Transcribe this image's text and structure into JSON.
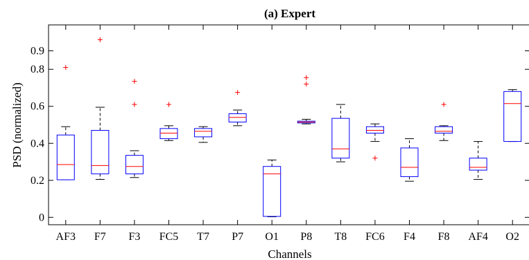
{
  "chart_data": {
    "type": "boxplot",
    "title": "(a) Expert",
    "xlabel": "Channels",
    "ylabel": "PSD (normalized)",
    "ylim": [
      -0.04,
      1.04
    ],
    "yticks": [
      0,
      0.2,
      0.4,
      0.6,
      0.8,
      0.9
    ],
    "ytick_labels": [
      "0",
      "0.2",
      "0.4",
      "0.6",
      "0.8",
      "0.9"
    ],
    "grid": false,
    "box_color": "#0000ff",
    "median_color": "#ff0000",
    "whisker_color": "#000000",
    "outlier_color": "#ff0000",
    "categories": [
      "AF3",
      "F7",
      "F3",
      "FC5",
      "T7",
      "P7",
      "O1",
      "P8",
      "T8",
      "FC6",
      "F4",
      "F8",
      "AF4",
      "O2"
    ],
    "boxes": [
      {
        "q1": 0.203,
        "median": 0.285,
        "q3": 0.445,
        "whisker_low": 0.203,
        "whisker_high": 0.49,
        "outliers": [
          0.81
        ]
      },
      {
        "q1": 0.235,
        "median": 0.28,
        "q3": 0.47,
        "whisker_low": 0.205,
        "whisker_high": 0.595,
        "outliers": [
          0.96
        ]
      },
      {
        "q1": 0.235,
        "median": 0.275,
        "q3": 0.335,
        "whisker_low": 0.215,
        "whisker_high": 0.36,
        "outliers": [
          0.61,
          0.735
        ]
      },
      {
        "q1": 0.425,
        "median": 0.455,
        "q3": 0.48,
        "whisker_low": 0.415,
        "whisker_high": 0.495,
        "outliers": [
          0.61
        ]
      },
      {
        "q1": 0.435,
        "median": 0.465,
        "q3": 0.48,
        "whisker_low": 0.405,
        "whisker_high": 0.49,
        "outliers": []
      },
      {
        "q1": 0.515,
        "median": 0.54,
        "q3": 0.56,
        "whisker_low": 0.495,
        "whisker_high": 0.58,
        "outliers": [
          0.675
        ]
      },
      {
        "q1": 0.005,
        "median": 0.235,
        "q3": 0.275,
        "whisker_low": 0.003,
        "whisker_high": 0.31,
        "outliers": []
      },
      {
        "q1": 0.51,
        "median": 0.515,
        "q3": 0.52,
        "whisker_low": 0.505,
        "whisker_high": 0.53,
        "outliers": [
          0.72,
          0.755
        ]
      },
      {
        "q1": 0.32,
        "median": 0.37,
        "q3": 0.535,
        "whisker_low": 0.3,
        "whisker_high": 0.61,
        "outliers": []
      },
      {
        "q1": 0.455,
        "median": 0.47,
        "q3": 0.49,
        "whisker_low": 0.41,
        "whisker_high": 0.505,
        "outliers": [
          0.32
        ]
      },
      {
        "q1": 0.22,
        "median": 0.27,
        "q3": 0.375,
        "whisker_low": 0.195,
        "whisker_high": 0.425,
        "outliers": []
      },
      {
        "q1": 0.455,
        "median": 0.465,
        "q3": 0.49,
        "whisker_low": 0.415,
        "whisker_high": 0.495,
        "outliers": [
          0.61
        ]
      },
      {
        "q1": 0.255,
        "median": 0.27,
        "q3": 0.32,
        "whisker_low": 0.205,
        "whisker_high": 0.41,
        "outliers": []
      },
      {
        "q1": 0.41,
        "median": 0.615,
        "q3": 0.68,
        "whisker_low": 0.41,
        "whisker_high": 0.69,
        "outliers": []
      }
    ]
  }
}
